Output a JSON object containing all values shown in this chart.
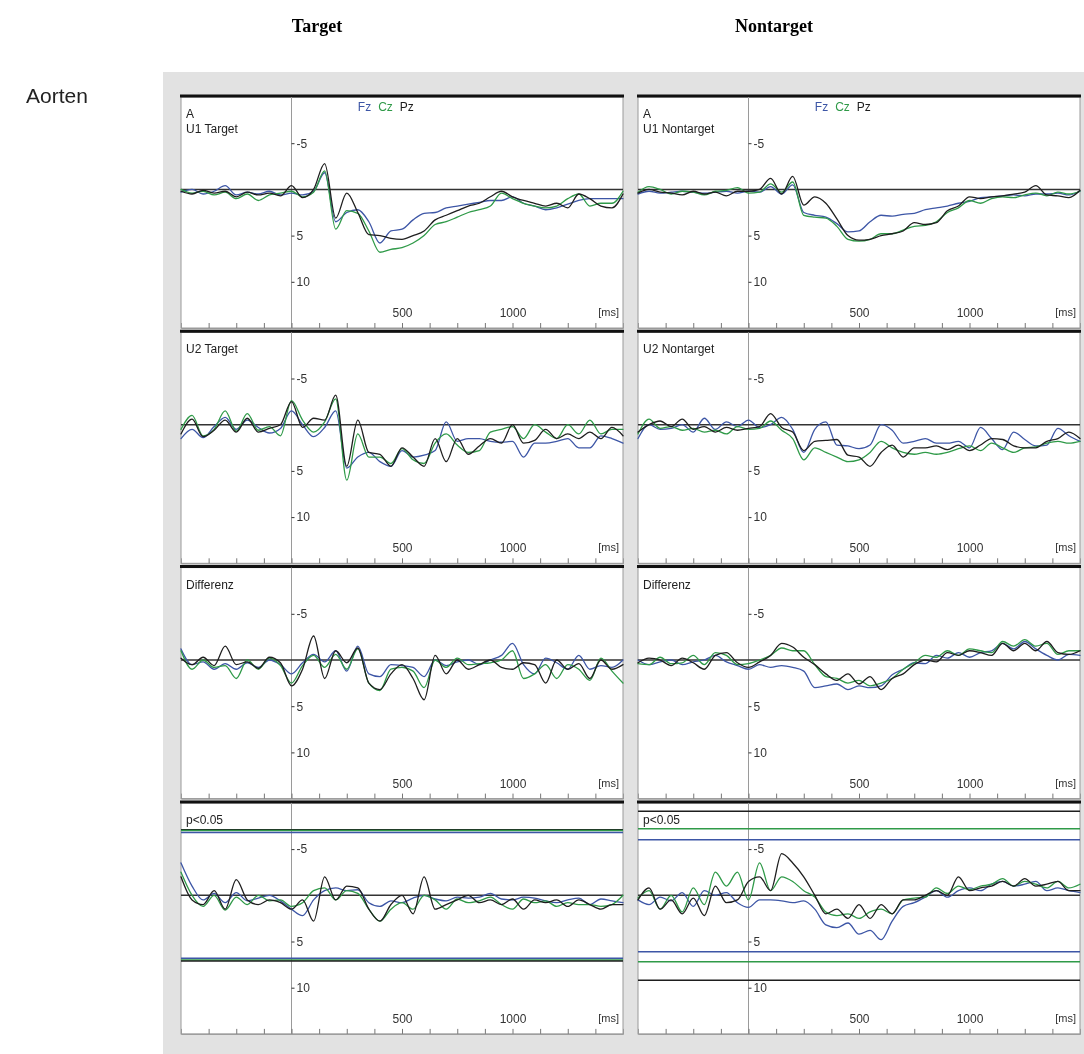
{
  "chart_data": [
    {
      "type": "line",
      "title": "Target",
      "subtitle": "U1 Target",
      "ylabel": "Aorten",
      "annotations": [
        "A"
      ],
      "xlabel": "[ms]",
      "legend": "top",
      "marker": "none",
      "line_style": "solid",
      "xlim": [
        -500,
        1500
      ],
      "ylim": [
        15,
        -10
      ],
      "xticks": [
        {
          "value": -375,
          "label": null
        },
        {
          "value": -250,
          "label": null
        },
        {
          "value": -125,
          "label": null
        },
        {
          "value": 0,
          "label": null
        },
        {
          "value": 125,
          "label": null
        },
        {
          "value": 250,
          "label": null
        },
        {
          "value": 375,
          "label": null
        },
        {
          "value": 500,
          "label": "500"
        },
        {
          "value": 625,
          "label": null
        },
        {
          "value": 750,
          "label": null
        },
        {
          "value": 875,
          "label": null
        },
        {
          "value": 1000,
          "label": "1000"
        },
        {
          "value": 1125,
          "label": null
        },
        {
          "value": 1250,
          "label": null
        },
        {
          "value": 1375,
          "label": null
        }
      ],
      "yticks": [
        -5,
        5,
        10
      ],
      "ref_lines": [
        {
          "axis": "y",
          "value": 0,
          "color": "#333333"
        }
      ],
      "x": [
        -500,
        -450,
        -400,
        -350,
        -300,
        -250,
        -200,
        -150,
        -100,
        -50,
        0,
        50,
        100,
        150,
        200,
        250,
        300,
        350,
        400,
        450,
        500,
        550,
        600,
        650,
        700,
        750,
        800,
        850,
        900,
        950,
        1000,
        1050,
        1100,
        1150,
        1200,
        1250,
        1300,
        1350,
        1400,
        1450,
        1500
      ],
      "series": [
        {
          "name": "Fz",
          "color": "#3d56a6",
          "values": [
            0.3,
            0.0,
            0.5,
            0.2,
            -0.4,
            0.6,
            0.3,
            0.5,
            0.2,
            0.6,
            0.4,
            0.6,
            0.2,
            -1.8,
            3.5,
            2.5,
            2.2,
            3.5,
            5.8,
            4.5,
            4.3,
            3.3,
            2.6,
            2.5,
            2.0,
            1.8,
            1.6,
            1.4,
            1.2,
            1.2,
            0.8,
            1.5,
            1.8,
            2.2,
            2.0,
            1.6,
            1.2,
            1.0,
            1.0,
            1.0,
            1.0
          ]
        },
        {
          "name": "Cz",
          "color": "#2f9a48",
          "values": [
            0.0,
            0.4,
            0.2,
            0.6,
            0.3,
            1.0,
            0.5,
            1.2,
            0.6,
            0.4,
            0.2,
            0.8,
            0.3,
            -2.0,
            4.3,
            2.3,
            2.6,
            4.5,
            6.8,
            6.5,
            6.3,
            5.8,
            5.0,
            3.8,
            3.5,
            3.0,
            2.5,
            2.2,
            1.8,
            0.4,
            1.0,
            1.5,
            1.8,
            2.0,
            1.8,
            1.0,
            0.5,
            1.8,
            1.5,
            1.5,
            0.2
          ]
        },
        {
          "name": "Pz",
          "color": "#1e1e1e",
          "values": [
            0.2,
            0.5,
            0.1,
            0.4,
            0.2,
            0.8,
            0.3,
            0.6,
            0.4,
            0.7,
            -0.4,
            0.9,
            0.0,
            -2.8,
            3.1,
            0.4,
            2.5,
            4.9,
            5.0,
            5.3,
            5.4,
            5.0,
            4.5,
            3.3,
            2.8,
            2.3,
            1.8,
            1.5,
            0.8,
            0.2,
            0.8,
            1.2,
            1.5,
            1.8,
            1.5,
            2.0,
            0.5,
            1.0,
            1.8,
            2.0,
            0.5
          ]
        }
      ]
    },
    {
      "type": "line",
      "title": "Nontarget",
      "subtitle": "U1 Nontarget",
      "annotations": [
        "A"
      ],
      "xlabel": "[ms]",
      "legend": "top",
      "marker": "none",
      "line_style": "solid",
      "xlim": [
        -500,
        1500
      ],
      "ylim": [
        15,
        -10
      ],
      "xticks": [
        {
          "value": -375,
          "label": null
        },
        {
          "value": -250,
          "label": null
        },
        {
          "value": -125,
          "label": null
        },
        {
          "value": 0,
          "label": null
        },
        {
          "value": 125,
          "label": null
        },
        {
          "value": 250,
          "label": null
        },
        {
          "value": 375,
          "label": null
        },
        {
          "value": 500,
          "label": "500"
        },
        {
          "value": 625,
          "label": null
        },
        {
          "value": 750,
          "label": null
        },
        {
          "value": 875,
          "label": null
        },
        {
          "value": 1000,
          "label": "1000"
        },
        {
          "value": 1125,
          "label": null
        },
        {
          "value": 1250,
          "label": null
        },
        {
          "value": 1375,
          "label": null
        }
      ],
      "yticks": [
        -5,
        5,
        10
      ],
      "ref_lines": [
        {
          "axis": "y",
          "value": 0,
          "color": "#333333"
        }
      ],
      "x": [
        -500,
        -450,
        -400,
        -350,
        -300,
        -250,
        -200,
        -150,
        -100,
        -50,
        0,
        50,
        100,
        150,
        200,
        250,
        300,
        350,
        400,
        450,
        500,
        550,
        600,
        650,
        700,
        750,
        800,
        850,
        900,
        950,
        1000,
        1050,
        1100,
        1150,
        1200,
        1250,
        1300,
        1350,
        1400,
        1450,
        1500
      ],
      "series": [
        {
          "name": "Fz",
          "color": "#3d56a6",
          "values": [
            0.5,
            0.2,
            0.4,
            0.3,
            0.2,
            0.3,
            0.4,
            0.3,
            0.2,
            0.4,
            0.2,
            0.3,
            -0.3,
            0.5,
            -0.5,
            2.5,
            2.8,
            3.0,
            3.7,
            4.6,
            4.5,
            3.5,
            2.8,
            2.9,
            2.7,
            2.6,
            2.2,
            2.0,
            1.8,
            1.5,
            1.3,
            0.9,
            0.8,
            0.7,
            0.6,
            0.7,
            0.5,
            0.5,
            0.4,
            0.6,
            0.2
          ]
        },
        {
          "name": "Cz",
          "color": "#2f9a48",
          "values": [
            0.3,
            -0.3,
            0.0,
            0.5,
            0.2,
            0.3,
            0.6,
            0.2,
            0.1,
            -0.2,
            0.4,
            0.3,
            -0.6,
            0.3,
            -0.8,
            2.8,
            3.0,
            3.1,
            4.0,
            5.4,
            5.6,
            5.4,
            4.8,
            4.8,
            4.4,
            4.0,
            3.9,
            3.5,
            2.5,
            2.0,
            1.2,
            1.5,
            1.0,
            0.8,
            0.9,
            0.6,
            0.4,
            0.7,
            0.3,
            0.5,
            0.2
          ]
        },
        {
          "name": "Pz",
          "color": "#1e1e1e",
          "values": [
            0.4,
            0.0,
            0.3,
            0.4,
            0.6,
            0.2,
            0.5,
            0.3,
            0.7,
            0.2,
            0.2,
            0.0,
            -1.2,
            0.5,
            -1.4,
            1.7,
            0.8,
            1.5,
            3.2,
            5.0,
            5.5,
            5.4,
            5.0,
            4.8,
            4.5,
            3.6,
            3.8,
            3.6,
            2.3,
            1.8,
            0.8,
            1.0,
            0.8,
            0.7,
            0.5,
            0.3,
            -0.4,
            0.6,
            0.7,
            0.9,
            0.1
          ]
        }
      ]
    },
    {
      "type": "line",
      "title": "U2 Target",
      "xlabel": "[ms]",
      "marker": "none",
      "line_style": "solid",
      "xlim": [
        -500,
        1500
      ],
      "ylim": [
        15,
        -10
      ],
      "xticks": [
        {
          "value": -375,
          "label": null
        },
        {
          "value": -250,
          "label": null
        },
        {
          "value": -125,
          "label": null
        },
        {
          "value": 0,
          "label": null
        },
        {
          "value": 125,
          "label": null
        },
        {
          "value": 250,
          "label": null
        },
        {
          "value": 375,
          "label": null
        },
        {
          "value": 500,
          "label": "500"
        },
        {
          "value": 625,
          "label": null
        },
        {
          "value": 750,
          "label": null
        },
        {
          "value": 875,
          "label": null
        },
        {
          "value": 1000,
          "label": "1000"
        },
        {
          "value": 1125,
          "label": null
        },
        {
          "value": 1250,
          "label": null
        },
        {
          "value": 1375,
          "label": null
        }
      ],
      "yticks": [
        -5,
        5,
        10
      ],
      "ref_lines": [
        {
          "axis": "y",
          "value": 0,
          "color": "#333333"
        }
      ],
      "x": [
        -500,
        -450,
        -400,
        -350,
        -300,
        -250,
        -200,
        -150,
        -100,
        -50,
        0,
        50,
        100,
        150,
        200,
        250,
        300,
        350,
        400,
        450,
        500,
        550,
        600,
        650,
        700,
        750,
        800,
        850,
        900,
        950,
        1000,
        1050,
        1100,
        1150,
        1200,
        1250,
        1300,
        1350,
        1400,
        1450,
        1500
      ],
      "series": [
        {
          "color": "#3d56a6",
          "values": [
            1.5,
            0.5,
            1.4,
            0.2,
            -0.8,
            0.5,
            -0.5,
            0.3,
            0.9,
            0.4,
            -1.5,
            0.0,
            1.3,
            0.3,
            -1.5,
            4.7,
            3.5,
            3.0,
            4.0,
            4.5,
            2.8,
            3.5,
            3.3,
            2.8,
            -0.3,
            1.8,
            1.5,
            1.5,
            1.8,
            1.9,
            1.8,
            3.5,
            2.0,
            2.0,
            1.8,
            1.5,
            2.5,
            2.5,
            1.2,
            1.5,
            2.0
          ]
        },
        {
          "color": "#2f9a48",
          "values": [
            0.5,
            -1.0,
            1.2,
            0.5,
            -1.5,
            0.7,
            -1.2,
            0.6,
            0.2,
            1.2,
            -2.6,
            -0.5,
            0.8,
            -0.3,
            -2.8,
            6.0,
            1.0,
            3.5,
            3.5,
            4.2,
            2.6,
            3.8,
            4.2,
            2.0,
            1.0,
            2.2,
            3.0,
            2.8,
            0.8,
            0.5,
            0.2,
            1.5,
            0.0,
            0.8,
            1.5,
            0.0,
            1.0,
            -0.5,
            1.0,
            0.5,
            0.5
          ]
        },
        {
          "color": "#1e1e1e",
          "values": [
            1.0,
            -0.6,
            1.3,
            0.6,
            -0.5,
            0.8,
            -0.7,
            0.8,
            0.4,
            0.0,
            -2.5,
            0.3,
            -0.7,
            -0.5,
            -3.2,
            4.5,
            -0.5,
            3.0,
            3.2,
            4.5,
            2.5,
            3.5,
            4.5,
            1.5,
            4.0,
            1.5,
            3.2,
            2.3,
            1.5,
            2.0,
            0.0,
            2.0,
            1.7,
            0.5,
            1.5,
            1.0,
            1.5,
            0.8,
            1.5,
            0.3,
            1.2
          ]
        }
      ]
    },
    {
      "type": "line",
      "title": "U2 Nontarget",
      "xlabel": "[ms]",
      "marker": "none",
      "line_style": "solid",
      "xlim": [
        -500,
        1500
      ],
      "ylim": [
        15,
        -10
      ],
      "xticks": [
        {
          "value": -375,
          "label": null
        },
        {
          "value": -250,
          "label": null
        },
        {
          "value": -125,
          "label": null
        },
        {
          "value": 0,
          "label": null
        },
        {
          "value": 125,
          "label": null
        },
        {
          "value": 250,
          "label": null
        },
        {
          "value": 375,
          "label": null
        },
        {
          "value": 500,
          "label": "500"
        },
        {
          "value": 625,
          "label": null
        },
        {
          "value": 750,
          "label": null
        },
        {
          "value": 875,
          "label": null
        },
        {
          "value": 1000,
          "label": "1000"
        },
        {
          "value": 1125,
          "label": null
        },
        {
          "value": 1250,
          "label": null
        },
        {
          "value": 1375,
          "label": null
        }
      ],
      "yticks": [
        -5,
        5,
        10
      ],
      "ref_lines": [
        {
          "axis": "y",
          "value": 0,
          "color": "#333333"
        }
      ],
      "x": [
        -500,
        -450,
        -400,
        -350,
        -300,
        -250,
        -200,
        -150,
        -100,
        -50,
        0,
        50,
        100,
        150,
        200,
        250,
        300,
        350,
        400,
        450,
        500,
        550,
        600,
        650,
        700,
        750,
        800,
        850,
        900,
        950,
        1000,
        1050,
        1100,
        1150,
        1200,
        1250,
        1300,
        1350,
        1400,
        1450,
        1500
      ],
      "series": [
        {
          "color": "#3d56a6",
          "values": [
            1.5,
            0.0,
            0.5,
            0.4,
            0.0,
            0.8,
            -0.7,
            0.5,
            -0.3,
            0.2,
            -0.5,
            0.3,
            0.0,
            -0.8,
            0.5,
            3.0,
            0.5,
            -0.3,
            2.2,
            2.3,
            2.6,
            2.2,
            0.0,
            0.6,
            2.0,
            1.8,
            1.5,
            2.0,
            2.0,
            1.8,
            2.5,
            0.3,
            1.5,
            2.7,
            0.8,
            1.6,
            2.3,
            2.2,
            0.4,
            1.2,
            1.8
          ]
        },
        {
          "color": "#2f9a48",
          "values": [
            1.0,
            -0.6,
            0.4,
            0.2,
            0.6,
            0.4,
            0.8,
            0.6,
            1.0,
            0.2,
            0.5,
            0.4,
            -0.4,
            0.6,
            1.5,
            3.8,
            2.5,
            3.0,
            3.5,
            4.0,
            3.8,
            3.0,
            1.8,
            2.5,
            3.0,
            3.2,
            3.0,
            3.2,
            3.0,
            2.6,
            2.3,
            2.8,
            2.0,
            2.5,
            3.0,
            2.5,
            2.4,
            2.0,
            1.8,
            2.0,
            1.8
          ]
        },
        {
          "color": "#1e1e1e",
          "values": [
            0.8,
            0.0,
            -0.4,
            0.2,
            -0.6,
            0.5,
            0.2,
            0.8,
            0.3,
            0.6,
            0.4,
            0.2,
            -1.2,
            0.3,
            0.8,
            2.8,
            1.8,
            1.7,
            1.6,
            3.3,
            3.5,
            4.5,
            3.0,
            2.2,
            3.5,
            2.5,
            2.5,
            2.3,
            2.7,
            2.2,
            2.8,
            2.2,
            1.5,
            1.6,
            2.3,
            2.5,
            2.5,
            1.8,
            1.5,
            0.8,
            1.5
          ]
        }
      ]
    },
    {
      "type": "line",
      "title": "Differenz",
      "xlabel": "[ms]",
      "marker": "none",
      "line_style": "solid",
      "xlim": [
        -500,
        1500
      ],
      "ylim": [
        15,
        -10
      ],
      "xticks": [
        {
          "value": -375,
          "label": null
        },
        {
          "value": -250,
          "label": null
        },
        {
          "value": -125,
          "label": null
        },
        {
          "value": 0,
          "label": null
        },
        {
          "value": 125,
          "label": null
        },
        {
          "value": 250,
          "label": null
        },
        {
          "value": 375,
          "label": null
        },
        {
          "value": 500,
          "label": "500"
        },
        {
          "value": 625,
          "label": null
        },
        {
          "value": 750,
          "label": null
        },
        {
          "value": 875,
          "label": null
        },
        {
          "value": 1000,
          "label": "1000"
        },
        {
          "value": 1125,
          "label": null
        },
        {
          "value": 1250,
          "label": null
        },
        {
          "value": 1375,
          "label": null
        }
      ],
      "yticks": [
        -5,
        5,
        10
      ],
      "ref_lines": [
        {
          "axis": "y",
          "value": 0,
          "color": "#333333"
        }
      ],
      "x": [
        -500,
        -450,
        -400,
        -350,
        -300,
        -250,
        -200,
        -150,
        -100,
        -50,
        0,
        50,
        100,
        150,
        200,
        250,
        300,
        350,
        400,
        450,
        500,
        550,
        600,
        650,
        700,
        750,
        800,
        850,
        900,
        950,
        1000,
        1050,
        1100,
        1150,
        1200,
        1250,
        1300,
        1350,
        1400,
        1450,
        1500
      ],
      "series": [
        {
          "color": "#3d56a6",
          "values": [
            -1.2,
            0.5,
            0.2,
            1.0,
            0.4,
            1.0,
            0.3,
            0.8,
            0.0,
            0.5,
            1.5,
            0.3,
            -0.6,
            0.2,
            -1.0,
            1.2,
            -1.5,
            1.5,
            1.8,
            0.5,
            0.6,
            0.8,
            1.8,
            0.0,
            0.6,
            0.2,
            0.0,
            0.5,
            0.0,
            -0.5,
            -1.8,
            0.5,
            1.5,
            -0.2,
            0.3,
            1.0,
            -0.5,
            1.0,
            0.6,
            0.8,
            0.0
          ]
        },
        {
          "color": "#2f9a48",
          "values": [
            -1.0,
            1.0,
            0.0,
            0.8,
            0.6,
            2.0,
            0.0,
            1.0,
            -0.2,
            0.6,
            2.5,
            0.6,
            -0.5,
            0.8,
            -0.6,
            1.0,
            -1.2,
            2.5,
            3.3,
            1.0,
            0.8,
            1.2,
            3.0,
            0.0,
            0.8,
            -0.2,
            0.5,
            0.4,
            0.3,
            0.0,
            -1.0,
            2.0,
            1.5,
            0.5,
            2.0,
            0.5,
            1.0,
            2.2,
            -0.2,
            1.2,
            2.5
          ]
        },
        {
          "color": "#1e1e1e",
          "values": [
            -0.2,
            0.5,
            -0.3,
            0.6,
            -1.5,
            0.5,
            0.2,
            0.9,
            -0.3,
            0.3,
            2.8,
            1.0,
            -2.6,
            2.0,
            -1.0,
            0.3,
            -1.3,
            2.5,
            3.2,
            1.5,
            0.5,
            2.0,
            4.3,
            -0.5,
            1.5,
            0.0,
            1.0,
            0.5,
            0.0,
            0.8,
            1.0,
            0.3,
            0.5,
            2.5,
            0.0,
            1.0,
            0.4,
            2.0,
            0.0,
            1.0,
            0.5
          ]
        }
      ]
    },
    {
      "type": "line",
      "title": "Differenz",
      "xlabel": "[ms]",
      "marker": "none",
      "line_style": "solid",
      "xlim": [
        -500,
        1500
      ],
      "ylim": [
        15,
        -10
      ],
      "xticks": [
        {
          "value": -375,
          "label": null
        },
        {
          "value": -250,
          "label": null
        },
        {
          "value": -125,
          "label": null
        },
        {
          "value": 0,
          "label": null
        },
        {
          "value": 125,
          "label": null
        },
        {
          "value": 250,
          "label": null
        },
        {
          "value": 375,
          "label": null
        },
        {
          "value": 500,
          "label": "500"
        },
        {
          "value": 625,
          "label": null
        },
        {
          "value": 750,
          "label": null
        },
        {
          "value": 875,
          "label": null
        },
        {
          "value": 1000,
          "label": "1000"
        },
        {
          "value": 1125,
          "label": null
        },
        {
          "value": 1250,
          "label": null
        },
        {
          "value": 1375,
          "label": null
        }
      ],
      "yticks": [
        -5,
        5,
        10
      ],
      "ref_lines": [
        {
          "axis": "y",
          "value": 0,
          "color": "#333333"
        }
      ],
      "x": [
        -500,
        -450,
        -400,
        -350,
        -300,
        -250,
        -200,
        -150,
        -100,
        -50,
        0,
        50,
        100,
        150,
        200,
        250,
        300,
        350,
        400,
        450,
        500,
        550,
        600,
        650,
        700,
        750,
        800,
        850,
        900,
        950,
        1000,
        1050,
        1100,
        1150,
        1200,
        1250,
        1300,
        1350,
        1400,
        1450,
        1500
      ],
      "series": [
        {
          "color": "#3d56a6",
          "values": [
            0.0,
            0.5,
            0.2,
            0.0,
            0.5,
            0.2,
            0.0,
            -0.5,
            0.2,
            0.6,
            1.0,
            0.5,
            0.8,
            0.6,
            0.8,
            1.2,
            3.0,
            2.8,
            2.6,
            3.2,
            2.8,
            3.0,
            2.8,
            1.6,
            1.0,
            0.3,
            0.4,
            -0.5,
            -0.2,
            -0.8,
            -0.3,
            -0.8,
            -1.0,
            -1.8,
            -1.2,
            -2.0,
            -1.2,
            -0.5,
            0.0,
            -0.6,
            -0.5
          ]
        },
        {
          "color": "#2f9a48",
          "values": [
            0.4,
            0.5,
            -0.3,
            0.4,
            0.3,
            -0.5,
            0.5,
            -0.8,
            -0.5,
            0.5,
            0.4,
            0.0,
            -0.5,
            -1.3,
            -1.0,
            -1.0,
            0.5,
            1.8,
            2.0,
            2.5,
            2.2,
            2.8,
            2.5,
            2.0,
            1.0,
            0.3,
            -0.5,
            -0.3,
            -1.0,
            -0.5,
            -1.2,
            -1.0,
            -0.8,
            -2.0,
            -1.5,
            -2.2,
            -1.5,
            -1.8,
            -0.6,
            -1.0,
            -1.0
          ]
        },
        {
          "color": "#1e1e1e",
          "values": [
            0.3,
            -0.2,
            0.0,
            0.6,
            -0.2,
            0.3,
            1.0,
            -0.5,
            -0.8,
            0.3,
            0.8,
            0.2,
            -0.5,
            -1.8,
            -1.4,
            -0.3,
            0.5,
            1.5,
            2.2,
            1.5,
            2.6,
            1.8,
            3.2,
            2.0,
            1.5,
            0.5,
            0.0,
            0.2,
            -0.8,
            -0.5,
            -1.0,
            -0.8,
            -0.5,
            -1.8,
            -1.0,
            -1.8,
            -1.0,
            -2.0,
            -0.8,
            -0.6,
            -1.0
          ]
        }
      ]
    },
    {
      "type": "line",
      "title": "p<0.05",
      "xlabel": "[ms]",
      "marker": "none",
      "line_style": "solid",
      "xlim": [
        -500,
        1500
      ],
      "ylim": [
        15,
        -10
      ],
      "xticks": [
        {
          "value": -375,
          "label": null
        },
        {
          "value": -250,
          "label": null
        },
        {
          "value": -125,
          "label": null
        },
        {
          "value": 0,
          "label": null
        },
        {
          "value": 125,
          "label": null
        },
        {
          "value": 250,
          "label": null
        },
        {
          "value": 375,
          "label": null
        },
        {
          "value": 500,
          "label": "500"
        },
        {
          "value": 625,
          "label": null
        },
        {
          "value": 750,
          "label": null
        },
        {
          "value": 875,
          "label": null
        },
        {
          "value": 1000,
          "label": "1000"
        },
        {
          "value": 1125,
          "label": null
        },
        {
          "value": 1250,
          "label": null
        },
        {
          "value": 1375,
          "label": null
        }
      ],
      "yticks": [
        -5,
        5,
        10
      ],
      "ref_lines": [
        {
          "axis": "y",
          "value": 0,
          "color": "#333333"
        },
        {
          "axis": "y",
          "value": -7.1,
          "color": "#1e1e1e"
        },
        {
          "axis": "y",
          "value": -7.0,
          "color": "#2f9a48"
        },
        {
          "axis": "y",
          "value": -6.8,
          "color": "#3d56a6"
        },
        {
          "axis": "y",
          "value": 6.8,
          "color": "#3d56a6"
        },
        {
          "axis": "y",
          "value": 7.0,
          "color": "#2f9a48"
        },
        {
          "axis": "y",
          "value": 7.1,
          "color": "#1e1e1e"
        }
      ],
      "x": [
        -500,
        -450,
        -400,
        -350,
        -300,
        -250,
        -200,
        -150,
        -100,
        -50,
        0,
        50,
        100,
        150,
        200,
        250,
        300,
        350,
        400,
        450,
        500,
        550,
        600,
        650,
        700,
        750,
        800,
        850,
        900,
        950,
        1000,
        1050,
        1100,
        1150,
        1200,
        1250,
        1300,
        1350,
        1400,
        1450,
        1500
      ],
      "series": [
        {
          "color": "#3d56a6",
          "values": [
            -3.5,
            -1.0,
            0.5,
            -0.2,
            0.8,
            -0.3,
            0.6,
            0.3,
            0.0,
            0.6,
            1.5,
            2.2,
            0.5,
            -0.5,
            -0.8,
            -0.5,
            -0.6,
            0.8,
            1.2,
            0.6,
            0.8,
            0.3,
            0.0,
            0.4,
            0.6,
            0.2,
            0.3,
            0.2,
            -0.2,
            0.4,
            0.5,
            0.2,
            0.3,
            0.6,
            0.8,
            0.5,
            0.3,
            1.0,
            0.4,
            0.6,
            0.8
          ]
        },
        {
          "color": "#2f9a48",
          "values": [
            -2.5,
            0.0,
            1.2,
            0.0,
            1.6,
            0.2,
            1.0,
            0.0,
            0.6,
            0.5,
            1.2,
            0.8,
            -0.5,
            -0.8,
            0.5,
            -0.5,
            -0.2,
            1.5,
            2.8,
            1.5,
            0.8,
            1.5,
            0.0,
            0.5,
            1.5,
            0.4,
            0.8,
            0.6,
            0.2,
            1.0,
            1.5,
            0.4,
            0.8,
            0.6,
            1.2,
            0.8,
            1.0,
            1.0,
            1.2,
            1.0,
            0.0
          ]
        },
        {
          "color": "#1e1e1e",
          "values": [
            -2.0,
            0.5,
            1.0,
            -0.5,
            1.5,
            -1.7,
            0.5,
            1.0,
            0.5,
            0.8,
            1.5,
            0.5,
            2.8,
            -2.0,
            0.5,
            -1.0,
            -0.8,
            1.5,
            2.8,
            1.0,
            0.0,
            2.0,
            -2.0,
            1.5,
            1.0,
            0.5,
            0.0,
            0.8,
            0.5,
            1.0,
            0.4,
            1.5,
            0.5,
            0.8,
            0.5,
            1.2,
            0.5,
            1.0,
            1.5,
            1.0,
            1.0
          ]
        }
      ]
    },
    {
      "type": "line",
      "title": "p<0.05",
      "xlabel": "[ms]",
      "marker": "none",
      "line_style": "solid",
      "xlim": [
        -500,
        1500
      ],
      "ylim": [
        15,
        -10
      ],
      "xticks": [
        {
          "value": -375,
          "label": null
        },
        {
          "value": -250,
          "label": null
        },
        {
          "value": -125,
          "label": null
        },
        {
          "value": 0,
          "label": null
        },
        {
          "value": 125,
          "label": null
        },
        {
          "value": 250,
          "label": null
        },
        {
          "value": 375,
          "label": null
        },
        {
          "value": 500,
          "label": "500"
        },
        {
          "value": 625,
          "label": null
        },
        {
          "value": 750,
          "label": null
        },
        {
          "value": 875,
          "label": null
        },
        {
          "value": 1000,
          "label": "1000"
        },
        {
          "value": 1125,
          "label": null
        },
        {
          "value": 1250,
          "label": null
        },
        {
          "value": 1375,
          "label": null
        }
      ],
      "yticks": [
        -5,
        5,
        10
      ],
      "ref_lines": [
        {
          "axis": "y",
          "value": 0,
          "color": "#333333"
        },
        {
          "axis": "y",
          "value": -9.1,
          "color": "#1e1e1e"
        },
        {
          "axis": "y",
          "value": -7.2,
          "color": "#2f9a48"
        },
        {
          "axis": "y",
          "value": -6.0,
          "color": "#3d56a6"
        },
        {
          "axis": "y",
          "value": 6.1,
          "color": "#3d56a6"
        },
        {
          "axis": "y",
          "value": 7.2,
          "color": "#2f9a48"
        },
        {
          "axis": "y",
          "value": 9.2,
          "color": "#1e1e1e"
        }
      ],
      "x": [
        -500,
        -450,
        -400,
        -350,
        -300,
        -250,
        -200,
        -150,
        -100,
        -50,
        0,
        50,
        100,
        150,
        200,
        250,
        300,
        350,
        400,
        450,
        500,
        550,
        600,
        650,
        700,
        750,
        800,
        850,
        900,
        950,
        1000,
        1050,
        1100,
        1150,
        1200,
        1250,
        1300,
        1350,
        1400,
        1450,
        1500
      ],
      "series": [
        {
          "color": "#3d56a6",
          "values": [
            0.5,
            1.0,
            0.2,
            0.6,
            -0.3,
            1.2,
            -0.5,
            0.0,
            -0.3,
            0.8,
            1.3,
            0.5,
            0.5,
            0.6,
            0.8,
            0.6,
            1.5,
            3.2,
            3.5,
            3.0,
            4.2,
            3.8,
            4.8,
            2.8,
            1.2,
            0.8,
            0.2,
            -0.5,
            0.2,
            -0.5,
            -0.8,
            -0.5,
            -1.2,
            -1.5,
            -1.0,
            -1.2,
            -1.5,
            -0.5,
            -0.8,
            -0.5,
            -0.3
          ]
        },
        {
          "color": "#2f9a48",
          "values": [
            0.3,
            -0.5,
            1.5,
            0.0,
            1.8,
            -0.8,
            1.0,
            -2.5,
            -1.0,
            -2.5,
            0.5,
            -3.5,
            -0.5,
            -2.0,
            -1.5,
            -0.5,
            0.2,
            1.8,
            2.2,
            2.0,
            2.5,
            1.8,
            1.5,
            2.0,
            0.5,
            0.3,
            0.2,
            -0.8,
            -0.2,
            -1.0,
            -0.6,
            -1.0,
            -1.2,
            -1.8,
            -1.0,
            -1.5,
            -1.2,
            -0.8,
            -1.5,
            -0.8,
            -1.2
          ]
        },
        {
          "color": "#1e1e1e",
          "values": [
            0.5,
            -0.8,
            1.5,
            0.5,
            2.0,
            0.3,
            2.2,
            -1.0,
            0.8,
            0.5,
            -1.5,
            -2.0,
            -0.5,
            -4.5,
            -3.5,
            -2.0,
            0.0,
            2.0,
            1.5,
            2.5,
            1.0,
            2.5,
            1.0,
            2.0,
            0.5,
            0.5,
            0.0,
            -0.5,
            0.0,
            -2.0,
            -0.5,
            -0.8,
            -1.0,
            -1.5,
            -1.0,
            -1.8,
            -1.0,
            -1.2,
            -1.5,
            -0.5,
            -0.5
          ]
        }
      ]
    }
  ]
}
